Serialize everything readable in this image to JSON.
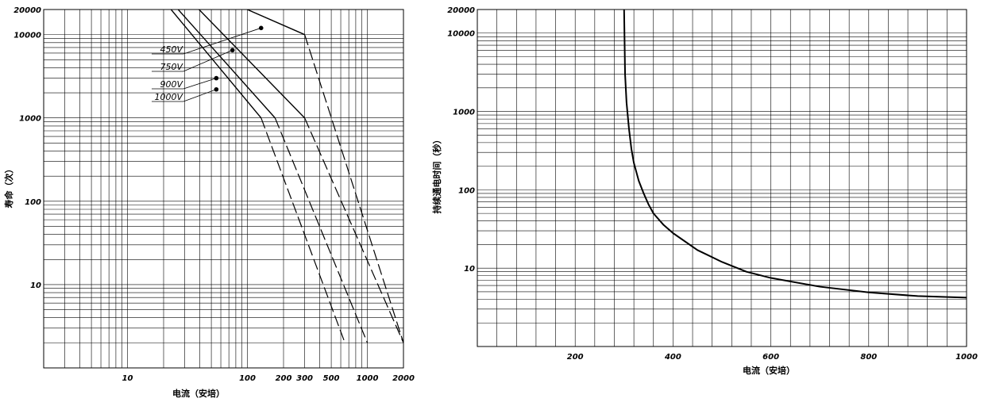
{
  "chart_data": [
    {
      "type": "line",
      "xlabel": "电流（安培）",
      "ylabel": "寿命（次）",
      "xscale": "log",
      "yscale": "log",
      "xlim": [
        2,
        2000
      ],
      "ylim": [
        1,
        20000
      ],
      "x_ticks": [
        "10",
        "100",
        "200",
        "300",
        "500",
        "1000",
        "2000"
      ],
      "y_ticks": [
        "10",
        "100",
        "1000",
        "10000",
        "20000"
      ],
      "series": [
        {
          "name": "450V",
          "solid": [
            [
              45,
              33000
            ],
            [
              300,
              10000
            ]
          ],
          "dashed": [
            [
              300,
              10000
            ],
            [
              2000,
              2
            ]
          ]
        },
        {
          "name": "750V",
          "solid": [
            [
              30,
              30000
            ],
            [
              300,
              1000
            ]
          ],
          "dashed": [
            [
              300,
              1000
            ],
            [
              2000,
              2
            ]
          ]
        },
        {
          "name": "900V",
          "solid": [
            [
              21,
              29000
            ],
            [
              170,
              1000
            ]
          ],
          "dashed": [
            [
              170,
              1000
            ],
            [
              1000,
              2
            ]
          ]
        },
        {
          "name": "1000V",
          "solid": [
            [
              19,
              28000
            ],
            [
              130,
              1000
            ]
          ],
          "dashed": [
            [
              130,
              1000
            ],
            [
              650,
              2
            ]
          ]
        }
      ],
      "markers": [
        [
          130,
          12000
        ],
        [
          75,
          6500
        ],
        [
          55,
          3000
        ],
        [
          55,
          2200
        ]
      ],
      "grid": true
    },
    {
      "type": "line",
      "xlabel": "电流（安培）",
      "ylabel": "持续通电时间（秒）",
      "xscale": "linear",
      "yscale": "log",
      "xlim": [
        0,
        1000
      ],
      "ylim": [
        1,
        20000
      ],
      "x_ticks": [
        "200",
        "400",
        "600",
        "800",
        "1000"
      ],
      "y_ticks": [
        "10",
        "100",
        "1000",
        "10000",
        "20000"
      ],
      "series": [
        {
          "x": [
            300,
            302,
            305,
            310,
            315,
            320,
            330,
            340,
            350,
            360,
            380,
            400,
            450,
            500,
            550,
            600,
            700,
            800,
            900,
            1000
          ],
          "y": [
            20000,
            3000,
            1300,
            600,
            330,
            220,
            130,
            90,
            65,
            50,
            36,
            28,
            17,
            12,
            9,
            7.5,
            5.8,
            4.9,
            4.4,
            4.2
          ]
        }
      ],
      "grid": true
    }
  ]
}
